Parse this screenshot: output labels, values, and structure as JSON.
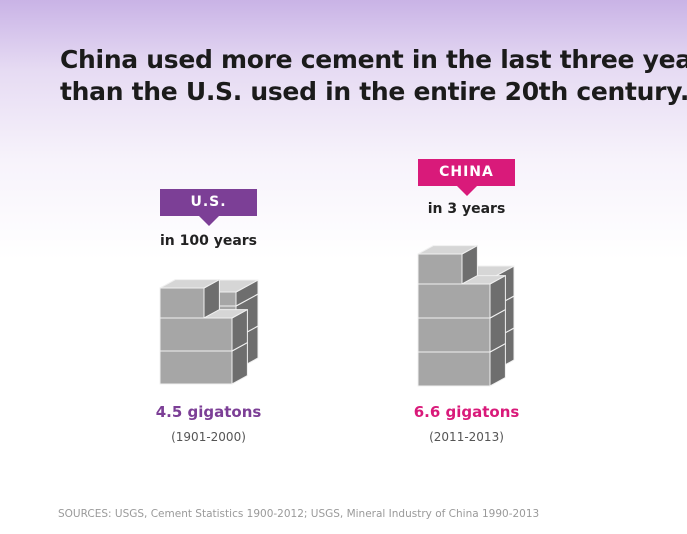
{
  "title_line1": "China used more cement in the last three years",
  "title_line2": "than the U.S. used in the entire 20th century.",
  "chart_data": {
    "type": "bar",
    "categories": [
      "U.S.",
      "CHINA"
    ],
    "values": [
      4.5,
      6.6
    ],
    "unit": "gigatons",
    "series": [
      {
        "label": "U.S.",
        "period": "in 100 years",
        "value_label": "4.5 gigatons",
        "years": "(1901-2000)",
        "color": "#7c3f96"
      },
      {
        "label": "CHINA",
        "period": "in 3 years",
        "value_label": "6.6 gigatons",
        "years": "(2011-2013)",
        "color": "#d91a7a"
      }
    ]
  },
  "sources": "SOURCES: USGS, Cement Statistics 1900-2012; USGS, Mineral Industry of China 1990-2013"
}
